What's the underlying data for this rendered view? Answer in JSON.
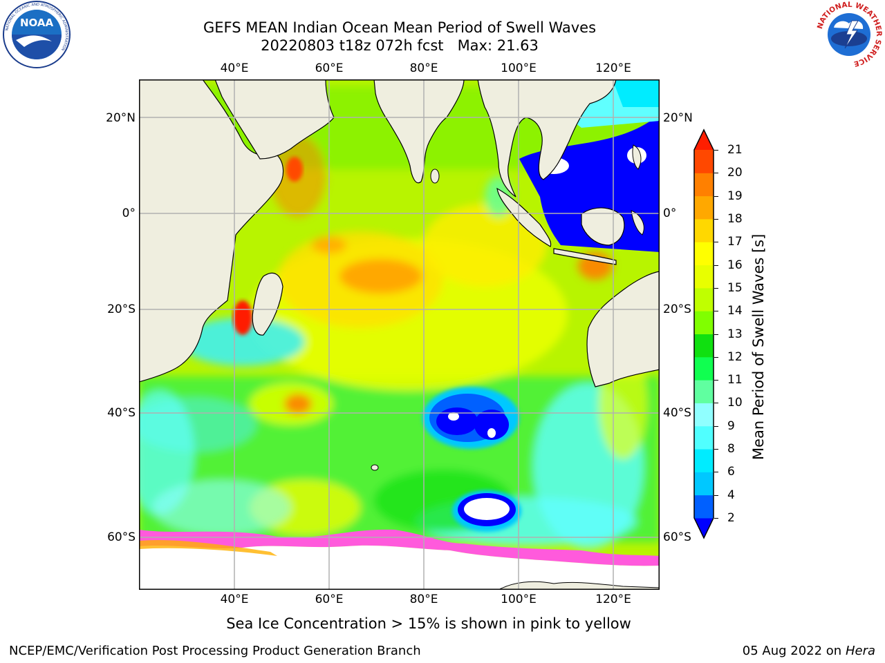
{
  "header": {
    "title_line1": "GEFS MEAN Indian Ocean Mean Period of Swell Waves",
    "title_line2": "20220803 t18z 072h fcst   Max: 21.63"
  },
  "logos": {
    "left": "noaa-logo",
    "right": "national-weather-service-logo",
    "left_ring_text": "NATIONAL OCEANIC AND ATMOSPHERIC ADMINISTRATION",
    "left_center_text": "NOAA",
    "left_bottom_text": "U.S. DEPARTMENT OF COMMERCE",
    "right_ring_text": "NATIONAL WEATHER SERVICE"
  },
  "map": {
    "lon_labels": [
      "40°E",
      "60°E",
      "80°E",
      "100°E",
      "120°E"
    ],
    "lat_labels": [
      "20°N",
      "0°",
      "20°S",
      "40°S",
      "60°S"
    ],
    "extent": {
      "lon": [
        20,
        130
      ],
      "lat": [
        -70,
        28
      ]
    },
    "colors": {
      "land": "#efeedf",
      "ocean_bg": "#a8f000",
      "grid": "#b0b0b0",
      "sea_ice": "#ff5adc"
    }
  },
  "colorbar": {
    "label": "Mean Period of Swell Waves [s]",
    "ticks": [
      "21",
      "20",
      "19",
      "18",
      "17",
      "16",
      "15",
      "14",
      "13",
      "12",
      "11",
      "10",
      "9",
      "8",
      "6",
      "4",
      "2"
    ],
    "colors_bottom_to_top": [
      "#0000ff",
      "#0060ff",
      "#00c8ff",
      "#00ecff",
      "#50ffff",
      "#90ffff",
      "#60ffa0",
      "#10ff50",
      "#10e010",
      "#80ff00",
      "#c0ff00",
      "#e8ff00",
      "#ffff00",
      "#ffd800",
      "#ffa800",
      "#ff8000",
      "#ff4800",
      "#ff1e00"
    ]
  },
  "footer": {
    "sea_ice_note": "Sea Ice Concentration > 15% is shown in pink to yellow",
    "credit": "NCEP/EMC/Verification Post Processing Product Generation Branch",
    "date": "05 Aug 2022 on",
    "host": "Hera"
  }
}
